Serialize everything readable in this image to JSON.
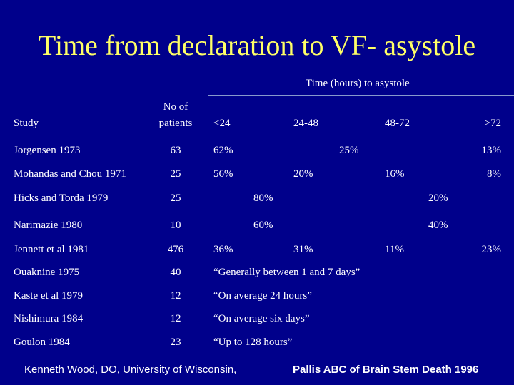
{
  "title": "Time from declaration to VF- asystole",
  "header": {
    "group_label": "Time (hours) to asystole",
    "study": "Study",
    "patients_line1": "No of",
    "patients_line2": "patients",
    "col_lt24": "<24",
    "col_24_48": "24-48",
    "col_48_72": "48-72",
    "col_gt72": ">72"
  },
  "rows": [
    {
      "study": "Jorgensen 1973",
      "patients": "63",
      "c1": "62%",
      "c2": "25%",
      "c3": "13%"
    },
    {
      "study": "Mohandas and Chou 1971",
      "patients": "25",
      "c1": "56%",
      "c2": "20%",
      "c3": "16%",
      "c4": "8%"
    },
    {
      "study": "Hicks and Torda 1979",
      "patients": "25",
      "c1": "80%",
      "c2": "20%"
    },
    {
      "study": "Narimazie 1980",
      "patients": "10",
      "c1": "60%",
      "c2": "40%"
    },
    {
      "study": "Jennett et al 1981",
      "patients": "476",
      "c1": "36%",
      "c2": "31%",
      "c3": "11%",
      "c4": "23%"
    },
    {
      "study": "Ouaknine 1975",
      "patients": "40",
      "note": "“Generally between 1 and 7 days”"
    },
    {
      "study": "Kaste et al 1979",
      "patients": "12",
      "note": "“On average 24 hours”"
    },
    {
      "study": "Nishimura 1984",
      "patients": "12",
      "note": "“On average six days”"
    },
    {
      "study": "Goulon 1984",
      "patients": "23",
      "note": "“Up to 128 hours”"
    }
  ],
  "footer": {
    "left": "Kenneth Wood, DO, University of Wisconsin,",
    "right": "Pallis ABC of Brain Stem Death 1996"
  },
  "colors": {
    "background": "#00008b",
    "title": "#ffff66",
    "text": "#ffffff"
  }
}
